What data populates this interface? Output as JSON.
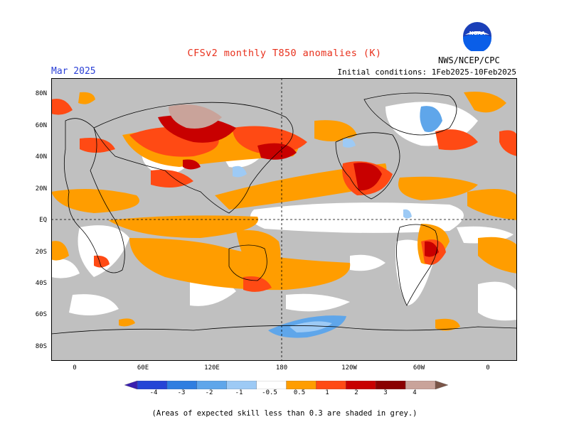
{
  "header": {
    "title": "CFSv2 monthly T850 anomalies (K)",
    "valid_month": "Mar 2025",
    "initial_conditions": "Initial conditions: 1Feb2025-10Feb2025",
    "agency": "NWS/NCEP/CPC",
    "logo_text": "NOAA"
  },
  "axes": {
    "lat_labels": [
      "80N",
      "60N",
      "40N",
      "20N",
      "EQ",
      "20S",
      "40S",
      "60S",
      "80S"
    ],
    "lon_labels": [
      "0",
      "60E",
      "120E",
      "180",
      "120W",
      "60W",
      "0"
    ]
  },
  "colorbar": {
    "labels": [
      "-4",
      "-3",
      "-2",
      "-1",
      "-0.5",
      "0.5",
      "1",
      "2",
      "3",
      "4"
    ],
    "colors": [
      "#3a1fb0",
      "#2545d6",
      "#2f7ee0",
      "#5fa6ea",
      "#9dcaf5",
      "#ffffff",
      "#ff9d00",
      "#ff4a14",
      "#c80000",
      "#8a0000",
      "#c9a39a",
      "#7a5548"
    ]
  },
  "legend_colors": {
    "low_skill_grey": "#c0c0c0",
    "no_signal": "#ffffff"
  },
  "footnote": "(Areas of expected skill less than 0.3 are shaded in grey.)"
}
